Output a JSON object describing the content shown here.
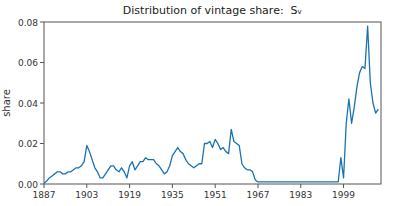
{
  "chart_data": {
    "type": "line",
    "title": "Distribution of vintage share:  Sᵥ",
    "ylabel": "share",
    "xlim": [
      1887,
      2013
    ],
    "ylim": [
      0,
      0.08
    ],
    "xticks": [
      1887,
      1903,
      1919,
      1935,
      1951,
      1967,
      1983,
      1999
    ],
    "yticks": [
      {
        "value": 0,
        "label": "0.00"
      },
      0.02,
      0.04,
      0.06,
      0.08
    ],
    "color": "#1b72b0",
    "grid": false,
    "x": [
      1887,
      1888,
      1889,
      1890,
      1891,
      1892,
      1893,
      1894,
      1895,
      1896,
      1897,
      1898,
      1899,
      1900,
      1901,
      1902,
      1903,
      1904,
      1905,
      1906,
      1907,
      1908,
      1909,
      1910,
      1911,
      1912,
      1913,
      1914,
      1915,
      1916,
      1917,
      1918,
      1919,
      1920,
      1921,
      1922,
      1923,
      1924,
      1925,
      1926,
      1927,
      1928,
      1929,
      1930,
      1931,
      1932,
      1933,
      1934,
      1935,
      1936,
      1937,
      1938,
      1939,
      1940,
      1941,
      1942,
      1943,
      1944,
      1945,
      1946,
      1947,
      1948,
      1949,
      1950,
      1951,
      1952,
      1953,
      1954,
      1955,
      1956,
      1957,
      1958,
      1959,
      1960,
      1961,
      1962,
      1963,
      1964,
      1965,
      1966,
      1967,
      1968,
      1969,
      1970,
      1971,
      1972,
      1973,
      1974,
      1975,
      1976,
      1977,
      1978,
      1979,
      1980,
      1981,
      1982,
      1983,
      1984,
      1985,
      1986,
      1987,
      1988,
      1989,
      1990,
      1991,
      1992,
      1993,
      1994,
      1995,
      1996,
      1997,
      1998,
      1999,
      2000,
      2001,
      2002,
      2003,
      2004,
      2005,
      2006,
      2007,
      2008,
      2009,
      2010,
      2011,
      2012
    ],
    "values": [
      0.0003,
      0.0015,
      0.003,
      0.004,
      0.005,
      0.006,
      0.006,
      0.005,
      0.005,
      0.006,
      0.006,
      0.007,
      0.008,
      0.008,
      0.009,
      0.011,
      0.019,
      0.016,
      0.012,
      0.008,
      0.006,
      0.003,
      0.003,
      0.005,
      0.007,
      0.009,
      0.009,
      0.007,
      0.006,
      0.008,
      0.006,
      0.003,
      0.009,
      0.011,
      0.007,
      0.009,
      0.011,
      0.011,
      0.013,
      0.012,
      0.012,
      0.012,
      0.01,
      0.009,
      0.007,
      0.005,
      0.006,
      0.009,
      0.014,
      0.016,
      0.018,
      0.016,
      0.015,
      0.012,
      0.01,
      0.009,
      0.008,
      0.009,
      0.01,
      0.01,
      0.02,
      0.02,
      0.021,
      0.018,
      0.022,
      0.02,
      0.017,
      0.018,
      0.016,
      0.015,
      0.027,
      0.021,
      0.02,
      0.019,
      0.01,
      0.008,
      0.007,
      0.007,
      0.006,
      0.002,
      0.001,
      0.001,
      0.001,
      0.001,
      0.001,
      0.001,
      0.001,
      0.001,
      0.001,
      0.001,
      0.001,
      0.001,
      0.001,
      0.001,
      0.001,
      0.001,
      0.001,
      0.001,
      0.001,
      0.001,
      0.001,
      0.001,
      0.001,
      0.001,
      0.001,
      0.001,
      0.001,
      0.001,
      0.001,
      0.001,
      0.001,
      0.013,
      0.003,
      0.03,
      0.042,
      0.03,
      0.038,
      0.048,
      0.055,
      0.058,
      0.057,
      0.078,
      0.05,
      0.04,
      0.035,
      0.037
    ]
  }
}
